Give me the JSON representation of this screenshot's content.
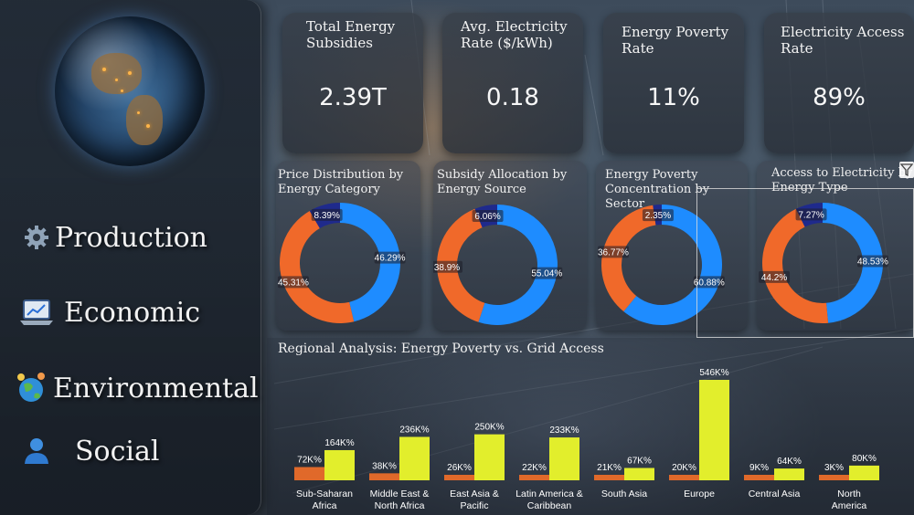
{
  "sidebar": {
    "items": [
      {
        "label": "Production",
        "icon": "gear-icon"
      },
      {
        "label": "Economic",
        "icon": "laptop-chart-icon"
      },
      {
        "label": "Environmental",
        "icon": "earth-people-icon"
      },
      {
        "label": "Social",
        "icon": "user-icon"
      }
    ]
  },
  "kpis": [
    {
      "title": "Total Energy Subsidies",
      "value": "2.39T"
    },
    {
      "title": "Avg. Electricity Rate ($/kWh)",
      "value": "0.18"
    },
    {
      "title": "Energy Poverty Rate",
      "value": "11%"
    },
    {
      "title": "Electricity Access Rate",
      "value": "89%"
    }
  ],
  "colors": {
    "blue": "#1e8cff",
    "orange": "#f0692a",
    "navy": "#1f2a8c",
    "bar_orange": "#e0692a",
    "bar_yellow": "#e2ee2c"
  },
  "chart_data": [
    {
      "type": "pie",
      "title": "Price Distribution by Energy Category",
      "slices": [
        {
          "label": "46.29%",
          "value": 46.29,
          "color": "#1e8cff"
        },
        {
          "label": "45.31%",
          "value": 45.31,
          "color": "#f0692a"
        },
        {
          "label": "8.39%",
          "value": 8.39,
          "color": "#1f2a8c"
        }
      ]
    },
    {
      "type": "pie",
      "title": "Subsidy Allocation by Energy Source",
      "slices": [
        {
          "label": "55.04%",
          "value": 55.04,
          "color": "#1e8cff"
        },
        {
          "label": "38.9%",
          "value": 38.9,
          "color": "#f0692a"
        },
        {
          "label": "6.06%",
          "value": 6.06,
          "color": "#1f2a8c"
        }
      ]
    },
    {
      "type": "pie",
      "title": "Energy Poverty Concentration by Sector",
      "slices": [
        {
          "label": "60.88%",
          "value": 60.88,
          "color": "#1e8cff"
        },
        {
          "label": "36.77%",
          "value": 36.77,
          "color": "#f0692a"
        },
        {
          "label": "2.35%",
          "value": 2.35,
          "color": "#1f2a8c"
        }
      ]
    },
    {
      "type": "pie",
      "title": "Access to Electricity by Energy Type",
      "slices": [
        {
          "label": "48.53%",
          "value": 48.53,
          "color": "#1e8cff"
        },
        {
          "label": "44.2%",
          "value": 44.2,
          "color": "#f0692a"
        },
        {
          "label": "7.27%",
          "value": 7.27,
          "color": "#1f2a8c"
        }
      ]
    },
    {
      "type": "bar",
      "title": "Regional Analysis: Energy Poverty vs. Grid Access",
      "categories": [
        "Sub-Saharan Africa",
        "Middle East & North Africa",
        "East Asia & Pacific",
        "Latin America & Caribbean",
        "South Asia",
        "Europe",
        "Central Asia",
        "North America"
      ],
      "series": [
        {
          "values": [
            72,
            38,
            26,
            22,
            21,
            20,
            9,
            3
          ],
          "labels": [
            "72K%",
            "38K%",
            "26K%",
            "22K%",
            "21K%",
            "20K%",
            "9K%",
            "3K%"
          ],
          "color": "#e0692a"
        },
        {
          "values": [
            164,
            236,
            250,
            233,
            67,
            546,
            64,
            80
          ],
          "labels": [
            "164K%",
            "236K%",
            "250K%",
            "233K%",
            "67K%",
            "546K%",
            "64K%",
            "80K%"
          ],
          "color": "#e2ee2c"
        }
      ],
      "ylim": [
        0,
        546
      ]
    }
  ]
}
